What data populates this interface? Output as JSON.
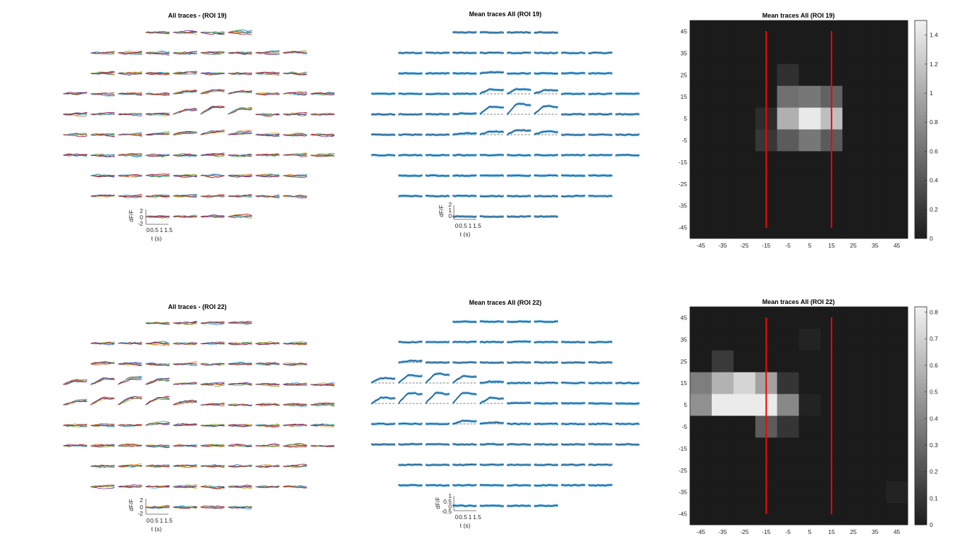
{
  "figure": {
    "rows": [
      {
        "roi": 19,
        "all_title": "All traces - (ROI 19)",
        "mean_title": "Mean traces All (ROI 19)",
        "heat_title": "Mean traces All (ROI 19)",
        "all_yticks": [
          "2",
          "0",
          "-2"
        ],
        "mean_yticks": [
          "2",
          "1",
          "0"
        ]
      },
      {
        "roi": 22,
        "all_title": "All traces - (ROI 22)",
        "mean_title": "Mean traces All (ROI 22)",
        "heat_title": "Mean traces All (ROI 22)",
        "all_yticks": [
          "2",
          "0",
          "-2"
        ],
        "mean_yticks": [
          "1",
          "0.5",
          "0",
          "-0.5"
        ]
      }
    ],
    "scale_bar": {
      "ylabel": "dF/F",
      "xlabel": "t (s)",
      "xticks": [
        "0",
        "0.5",
        "1",
        "1.5"
      ]
    },
    "line_colors": [
      "#0072BD",
      "#D95319",
      "#EDB120",
      "#7E2F8E",
      "#77AC30",
      "#4DBEEE",
      "#A2142F"
    ],
    "mean_line_color": "#1a4a6b",
    "mean_band_color": "#4aa3df",
    "reference_line_color": "#ff0000"
  },
  "chart_data": [
    {
      "type": "heatmap",
      "title": "Mean traces All (ROI 19)",
      "x": [
        -45,
        -35,
        -25,
        -15,
        -5,
        5,
        15,
        25,
        35,
        45
      ],
      "y": [
        45,
        35,
        25,
        15,
        5,
        -5,
        -15,
        -25,
        -35,
        -45
      ],
      "xticks": [
        "-45",
        "-35",
        "-25",
        "-15",
        "-5",
        "5",
        "15",
        "25",
        "35",
        "45"
      ],
      "yticks": [
        "45",
        "35",
        "25",
        "15",
        "5",
        "-5",
        "-15",
        "-25",
        "-35",
        "-45"
      ],
      "colorbar_ticks": [
        "0",
        "0.2",
        "0.4",
        "0.6",
        "0.8",
        "1",
        "1.2",
        "1.4"
      ],
      "clim": [
        0,
        1.5
      ],
      "colormap": "gray",
      "vlines": [
        -15,
        15
      ],
      "values": [
        [
          0,
          0,
          0,
          0,
          0,
          0,
          0,
          0,
          0,
          0
        ],
        [
          0,
          0,
          0,
          0,
          0,
          0,
          0,
          0,
          0,
          0
        ],
        [
          0,
          0,
          0,
          0,
          0.15,
          0,
          0,
          0,
          0,
          0
        ],
        [
          0,
          0,
          0,
          0,
          0.6,
          0.65,
          0.5,
          0,
          0,
          0
        ],
        [
          0,
          0,
          0,
          0.12,
          1.05,
          1.45,
          1.15,
          0,
          0,
          0
        ],
        [
          0,
          0,
          0,
          0.2,
          0.45,
          0.65,
          0.45,
          0,
          0,
          0
        ],
        [
          0,
          0,
          0,
          0,
          0,
          0,
          0,
          0,
          0,
          0
        ],
        [
          0,
          0,
          0,
          0,
          0,
          0,
          0,
          0,
          0,
          0
        ],
        [
          0,
          0,
          0,
          0,
          0,
          0,
          0,
          0,
          0,
          0
        ],
        [
          0,
          0,
          0,
          0,
          0,
          0,
          0,
          0,
          0,
          0
        ]
      ]
    },
    {
      "type": "heatmap",
      "title": "Mean traces All (ROI 22)",
      "x": [
        -45,
        -35,
        -25,
        -15,
        -5,
        5,
        15,
        25,
        35,
        45
      ],
      "y": [
        45,
        35,
        25,
        15,
        5,
        -5,
        -15,
        -25,
        -35,
        -45
      ],
      "xticks": [
        "-45",
        "-35",
        "-25",
        "-15",
        "-5",
        "5",
        "15",
        "25",
        "35",
        "45"
      ],
      "yticks": [
        "45",
        "35",
        "25",
        "15",
        "5",
        "-5",
        "-15",
        "-25",
        "-35",
        "-45"
      ],
      "colorbar_ticks": [
        "0",
        "0.1",
        "0.2",
        "0.3",
        "0.4",
        "0.5",
        "0.6",
        "0.7",
        "0.8"
      ],
      "clim": [
        0,
        0.82
      ],
      "colormap": "gray",
      "vlines": [
        -15,
        15
      ],
      "values": [
        [
          0,
          0,
          0,
          0,
          0,
          0,
          0,
          0,
          0,
          0
        ],
        [
          0,
          0,
          0,
          0,
          0,
          0.03,
          0,
          0,
          0,
          0
        ],
        [
          0,
          0.12,
          0,
          0,
          0,
          0,
          0,
          0,
          0,
          0
        ],
        [
          0.38,
          0.58,
          0.72,
          0.52,
          0.1,
          0,
          0,
          0,
          0,
          0
        ],
        [
          0.45,
          0.8,
          0.8,
          0.8,
          0.42,
          0.03,
          0,
          0,
          0,
          0
        ],
        [
          0,
          0,
          0,
          0.25,
          0.1,
          0,
          0,
          0,
          0,
          0
        ],
        [
          0,
          0,
          0,
          0,
          0,
          0,
          0,
          0,
          0,
          0
        ],
        [
          0,
          0,
          0,
          0,
          0,
          0,
          0,
          0,
          0,
          0
        ],
        [
          0,
          0,
          0,
          0,
          0,
          0,
          0,
          0,
          0,
          0.03
        ],
        [
          0,
          0,
          0,
          0,
          0,
          0,
          0,
          0,
          0,
          0
        ]
      ]
    }
  ]
}
